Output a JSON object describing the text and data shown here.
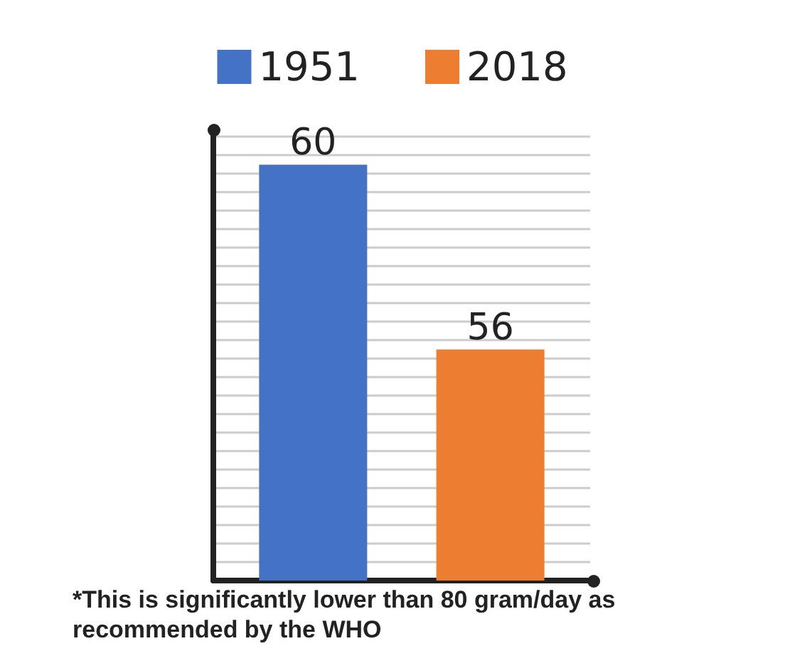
{
  "chart_data": {
    "type": "bar",
    "categories": [
      null
    ],
    "series": [
      {
        "name": "1951",
        "color": "#4472c4",
        "values": [
          60
        ]
      },
      {
        "name": "2018",
        "color": "#ed7d31",
        "values": [
          56
        ]
      }
    ],
    "ylim": [
      51,
      60.7
    ],
    "yticks": [
      {
        "value": 51.4,
        "label": null
      },
      {
        "value": 51.8,
        "label": null
      },
      {
        "value": 52.2,
        "label": null
      },
      {
        "value": 52.6,
        "label": null
      },
      {
        "value": 53,
        "label": null
      },
      {
        "value": 53.4,
        "label": null
      },
      {
        "value": 53.8,
        "label": null
      },
      {
        "value": 54.2,
        "label": null
      },
      {
        "value": 54.6,
        "label": null
      },
      {
        "value": 55,
        "label": null
      },
      {
        "value": 55.4,
        "label": null
      },
      {
        "value": 55.8,
        "label": null
      },
      {
        "value": 56.2,
        "label": null
      },
      {
        "value": 56.6,
        "label": null
      },
      {
        "value": 57,
        "label": null
      },
      {
        "value": 57.4,
        "label": null
      },
      {
        "value": 57.8,
        "label": null
      },
      {
        "value": 58.2,
        "label": null
      },
      {
        "value": 58.6,
        "label": null
      },
      {
        "value": 59,
        "label": null
      },
      {
        "value": 59.4,
        "label": null
      },
      {
        "value": 59.8,
        "label": null
      },
      {
        "value": 60.2,
        "label": null
      },
      {
        "value": 60.6,
        "label": null
      }
    ],
    "grid": "y",
    "legend": "top",
    "data_labels": true,
    "annotations": [
      "*This is significantly lower than 80 gram/day as recommended by the WHO"
    ]
  }
}
